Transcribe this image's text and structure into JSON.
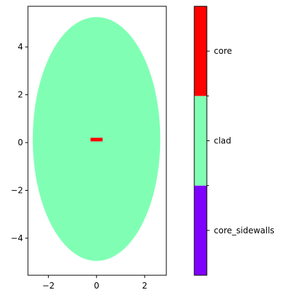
{
  "chart_data": {
    "type": "heatmap",
    "title": "",
    "xlabel": "",
    "ylabel": "",
    "xlim": [
      -2.85,
      2.9
    ],
    "ylim": [
      -5.55,
      5.7
    ],
    "x_ticks": [
      -2,
      0,
      2
    ],
    "y_ticks": [
      -4,
      -2,
      0,
      2,
      4
    ],
    "x_tick_labels": [
      "−2",
      "0",
      "2"
    ],
    "y_tick_labels": [
      "−4",
      "−2",
      "0",
      "2",
      "4"
    ],
    "grid": false,
    "regions": [
      {
        "name": "clad",
        "shape": "ellipse",
        "center": [
          0,
          0.15
        ],
        "semi_axes": [
          2.65,
          5.1
        ],
        "color": "#80ffb4"
      },
      {
        "name": "core",
        "shape": "rectangle",
        "x": [
          -0.25,
          0.25
        ],
        "y": [
          0.05,
          0.2
        ],
        "color": "#ff0000"
      }
    ],
    "colorbar": {
      "placement": "right",
      "categories": [
        {
          "label": "core_sidewalls",
          "color": "#8000ff"
        },
        {
          "label": "clad",
          "color": "#80ffb4"
        },
        {
          "label": "core",
          "color": "#ff0000"
        }
      ]
    }
  }
}
